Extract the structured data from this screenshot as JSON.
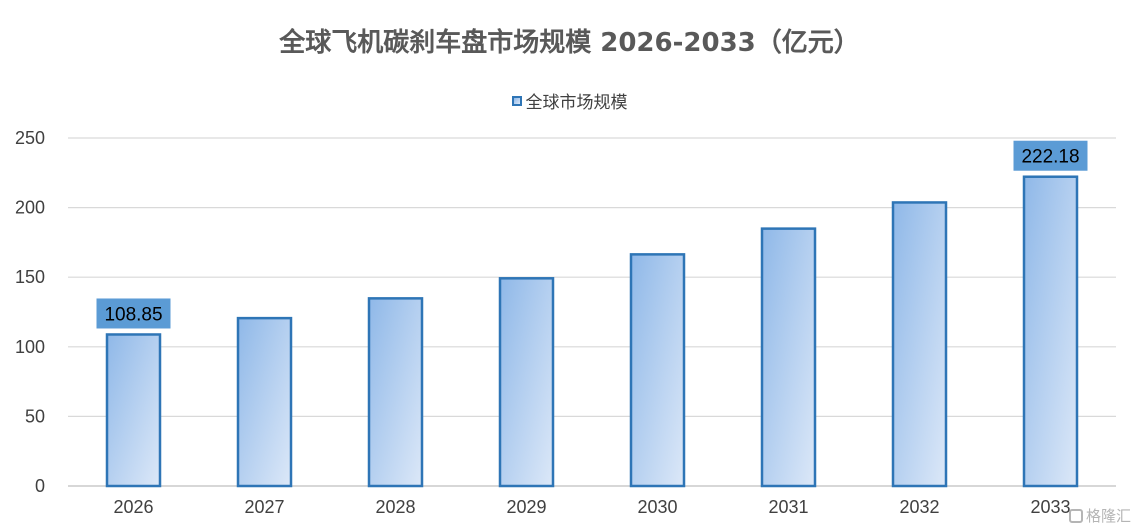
{
  "chart_data": {
    "type": "bar",
    "title": "全球飞机碳刹车盘市场规模 2026-2033（亿元）",
    "categories": [
      "2026",
      "2027",
      "2028",
      "2029",
      "2030",
      "2031",
      "2032",
      "2033"
    ],
    "series": [
      {
        "name": "全球市场规模",
        "values": [
          108.85,
          120.6,
          134.8,
          149.2,
          166.4,
          184.9,
          203.7,
          222.18
        ]
      }
    ],
    "data_labels": [
      {
        "category": "2026",
        "text": "108.85"
      },
      {
        "category": "2033",
        "text": "222.18"
      }
    ],
    "ylim": [
      0,
      250
    ],
    "yticks": [
      0,
      50,
      100,
      150,
      200,
      250
    ],
    "xlabel": "",
    "ylabel": "",
    "grid": true,
    "legend_position": "top-center",
    "colors": {
      "bar_fill_start": "#8FB8E8",
      "bar_fill_end": "#DCE8F8",
      "bar_border": "#2E75B6",
      "label_box": "#5B9BD5",
      "gridline": "#D9D9D9"
    }
  },
  "watermark": {
    "text": "格隆汇",
    "icon": "glh-logo-icon"
  }
}
